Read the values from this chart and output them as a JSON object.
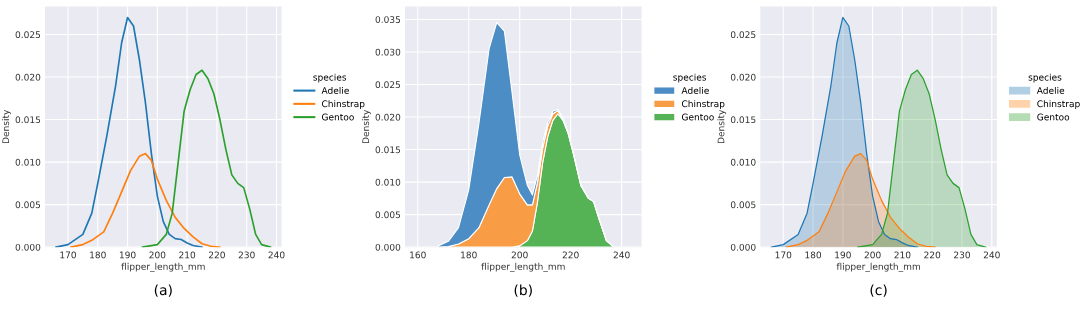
{
  "chart_data": [
    {
      "type": "line",
      "xlabel": "flipper_length_mm",
      "ylabel": "Density",
      "legend_title": "species",
      "legend": "right",
      "grid": true,
      "xlim": [
        162.3,
        241.7
      ],
      "xticks": [
        170,
        180,
        190,
        200,
        210,
        220,
        230,
        240
      ],
      "ylim": [
        0,
        0.0283
      ],
      "yticks": [
        {
          "value": 0,
          "label": "0.000"
        },
        {
          "value": 0.005,
          "label": "0.005"
        },
        {
          "value": 0.01,
          "label": "0.010"
        },
        {
          "value": 0.015,
          "label": "0.015"
        },
        {
          "value": 0.02,
          "label": "0.020"
        },
        {
          "value": 0.025,
          "label": "0.025"
        }
      ],
      "series": [
        {
          "name": "Adelie",
          "color": "#1f77b4",
          "x": [
            166,
            170,
            175,
            178,
            180,
            183,
            186,
            188,
            190,
            192,
            194,
            196,
            198,
            200,
            202,
            204,
            206,
            208,
            210,
            212,
            215
          ],
          "values": [
            0,
            0.0003,
            0.0015,
            0.004,
            0.0075,
            0.013,
            0.019,
            0.024,
            0.027,
            0.026,
            0.022,
            0.017,
            0.011,
            0.006,
            0.003,
            0.0015,
            0.001,
            0.0009,
            0.0005,
            0.0002,
            0
          ]
        },
        {
          "name": "Chinstrap",
          "color": "#ff7f0e",
          "x": [
            171,
            175,
            178,
            182,
            185,
            188,
            191,
            194,
            196,
            198,
            200,
            203,
            206,
            209,
            212,
            215,
            218,
            221
          ],
          "values": [
            0,
            0.0003,
            0.0008,
            0.0018,
            0.004,
            0.0065,
            0.009,
            0.0107,
            0.011,
            0.0102,
            0.008,
            0.0055,
            0.0035,
            0.0022,
            0.0012,
            0.0004,
            0.0001,
            0
          ]
        },
        {
          "name": "Gentoo",
          "color": "#2ca02c",
          "x": [
            195,
            200,
            203,
            205,
            207,
            209,
            211,
            213,
            215,
            217,
            219,
            221,
            223,
            225,
            227,
            229,
            231,
            233,
            235,
            238
          ],
          "values": [
            0,
            0.0003,
            0.0015,
            0.004,
            0.01,
            0.016,
            0.0185,
            0.0203,
            0.0208,
            0.0198,
            0.018,
            0.015,
            0.0115,
            0.0085,
            0.0075,
            0.007,
            0.0045,
            0.0015,
            0.0003,
            0
          ]
        }
      ],
      "annotations": [
        "(a)"
      ]
    },
    {
      "type": "area",
      "stacked": true,
      "xlabel": "flipper_length_mm",
      "ylabel": "Density",
      "legend_title": "species",
      "legend": "right",
      "grid": true,
      "xlim": [
        155,
        247.8
      ],
      "xticks": [
        160,
        180,
        200,
        220,
        240
      ],
      "ylim": [
        0,
        0.037
      ],
      "yticks": [
        {
          "value": 0,
          "label": "0.000"
        },
        {
          "value": 0.005,
          "label": "0.005"
        },
        {
          "value": 0.01,
          "label": "0.010"
        },
        {
          "value": 0.015,
          "label": "0.015"
        },
        {
          "value": 0.02,
          "label": "0.020"
        },
        {
          "value": 0.025,
          "label": "0.025"
        },
        {
          "value": 0.03,
          "label": "0.030"
        },
        {
          "value": 0.035,
          "label": "0.035"
        }
      ],
      "x": [
        168,
        172,
        176,
        180,
        184,
        188,
        191,
        194,
        197,
        200,
        203,
        205,
        207,
        209,
        211,
        213,
        215,
        217,
        219,
        221,
        224,
        227,
        229,
        231,
        234,
        237
      ],
      "series": [
        {
          "name": "Gentoo",
          "color": "#55b255",
          "values": [
            0,
            0,
            0,
            0,
            0,
            0,
            0,
            0,
            0,
            0.0002,
            0.001,
            0.0025,
            0.007,
            0.013,
            0.017,
            0.0195,
            0.0205,
            0.0195,
            0.0175,
            0.0145,
            0.0095,
            0.0075,
            0.007,
            0.0045,
            0.001,
            0
          ]
        },
        {
          "name": "Chinstrap",
          "color": "#f99c46",
          "values": [
            0,
            0.0001,
            0.0005,
            0.0013,
            0.003,
            0.0065,
            0.009,
            0.0107,
            0.0108,
            0.008,
            0.0055,
            0.004,
            0.003,
            0.0022,
            0.0016,
            0.001,
            0.0005,
            0.0002,
            0.0001,
            0,
            0,
            0,
            0,
            0,
            0,
            0
          ]
        },
        {
          "name": "Adelie",
          "color": "#4b8dc4",
          "values": [
            0.0002,
            0.0008,
            0.0025,
            0.0075,
            0.016,
            0.024,
            0.0255,
            0.0225,
            0.013,
            0.006,
            0.003,
            0.0015,
            0.0011,
            0.0009,
            0.0006,
            0.0004,
            0.0002,
            0.0001,
            0,
            0,
            0,
            0,
            0,
            0,
            0,
            0
          ]
        }
      ],
      "annotations": [
        "(b)"
      ]
    },
    {
      "type": "area",
      "xlabel": "flipper_length_mm",
      "ylabel": "Density",
      "legend_title": "species",
      "legend": "right",
      "grid": true,
      "xlim": [
        162.3,
        241.7
      ],
      "xticks": [
        170,
        180,
        190,
        200,
        210,
        220,
        230,
        240
      ],
      "ylim": [
        0,
        0.0283
      ],
      "yticks": [
        {
          "value": 0,
          "label": "0.000"
        },
        {
          "value": 0.005,
          "label": "0.005"
        },
        {
          "value": 0.01,
          "label": "0.010"
        },
        {
          "value": 0.015,
          "label": "0.015"
        },
        {
          "value": 0.02,
          "label": "0.020"
        },
        {
          "value": 0.025,
          "label": "0.025"
        }
      ],
      "series": [
        {
          "name": "Adelie",
          "color": "#1f77b4",
          "x": [
            166,
            170,
            175,
            178,
            180,
            183,
            186,
            188,
            190,
            192,
            194,
            196,
            198,
            200,
            202,
            204,
            206,
            208,
            210,
            212,
            215
          ],
          "values": [
            0,
            0.0003,
            0.0015,
            0.004,
            0.0075,
            0.013,
            0.019,
            0.024,
            0.027,
            0.026,
            0.022,
            0.017,
            0.011,
            0.006,
            0.003,
            0.0015,
            0.001,
            0.0009,
            0.0005,
            0.0002,
            0
          ]
        },
        {
          "name": "Chinstrap",
          "color": "#ff7f0e",
          "x": [
            171,
            175,
            178,
            182,
            185,
            188,
            191,
            194,
            196,
            198,
            200,
            203,
            206,
            209,
            212,
            215,
            218,
            221
          ],
          "values": [
            0,
            0.0003,
            0.0008,
            0.0018,
            0.004,
            0.0065,
            0.009,
            0.0107,
            0.011,
            0.0102,
            0.008,
            0.0055,
            0.0035,
            0.0022,
            0.0012,
            0.0004,
            0.0001,
            0
          ]
        },
        {
          "name": "Gentoo",
          "color": "#2ca02c",
          "x": [
            195,
            200,
            203,
            205,
            207,
            209,
            211,
            213,
            215,
            217,
            219,
            221,
            223,
            225,
            227,
            229,
            231,
            233,
            235,
            238
          ],
          "values": [
            0,
            0.0003,
            0.0015,
            0.004,
            0.01,
            0.016,
            0.0185,
            0.0203,
            0.0208,
            0.0198,
            0.018,
            0.015,
            0.0115,
            0.0085,
            0.0075,
            0.007,
            0.0045,
            0.0015,
            0.0003,
            0
          ]
        }
      ],
      "annotations": [
        "(c)"
      ]
    }
  ]
}
